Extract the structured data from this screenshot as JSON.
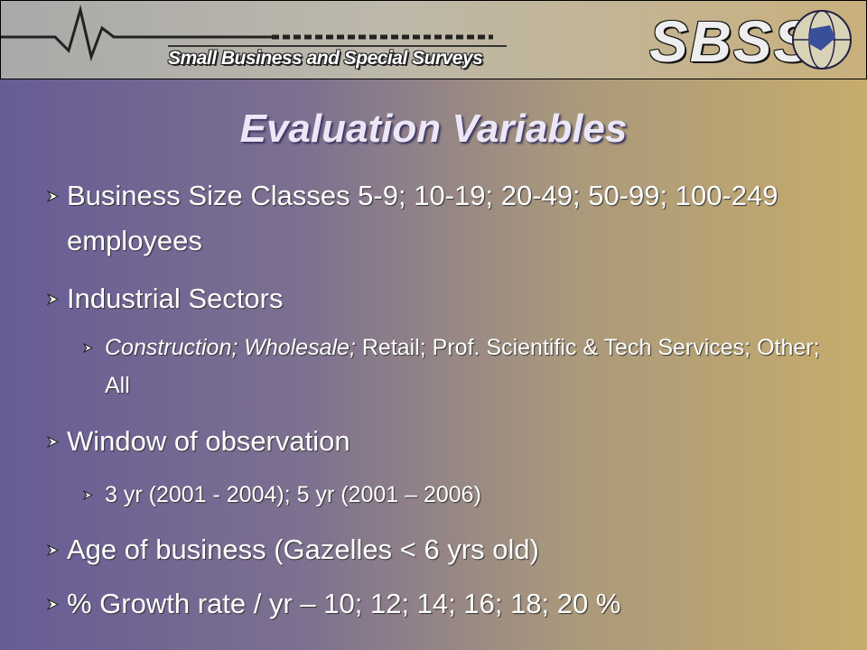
{
  "header": {
    "banner_text": "Small Business and Special Surveys",
    "logo_text": "SBSS"
  },
  "title": "Evaluation Variables",
  "bullets": [
    {
      "text": "Business Size Classes 5-9; 10-19; 20-49; 50-99; 100-249 employees"
    },
    {
      "text": "Industrial Sectors",
      "sub": [
        {
          "italic": "Construction; Wholesale;",
          "text": "Retail; Prof. Scientific & Tech Services; Other; All"
        }
      ]
    },
    {
      "text": "Window of observation",
      "sub": [
        {
          "text": "3 yr (2001 - 2004); 5 yr (2001 – 2006)"
        }
      ]
    },
    {
      "text": "Age of business (Gazelles  < 6 yrs old)"
    },
    {
      "text": "% Growth rate / yr – 10; 12; 14; 16; 18; 20 %"
    }
  ]
}
